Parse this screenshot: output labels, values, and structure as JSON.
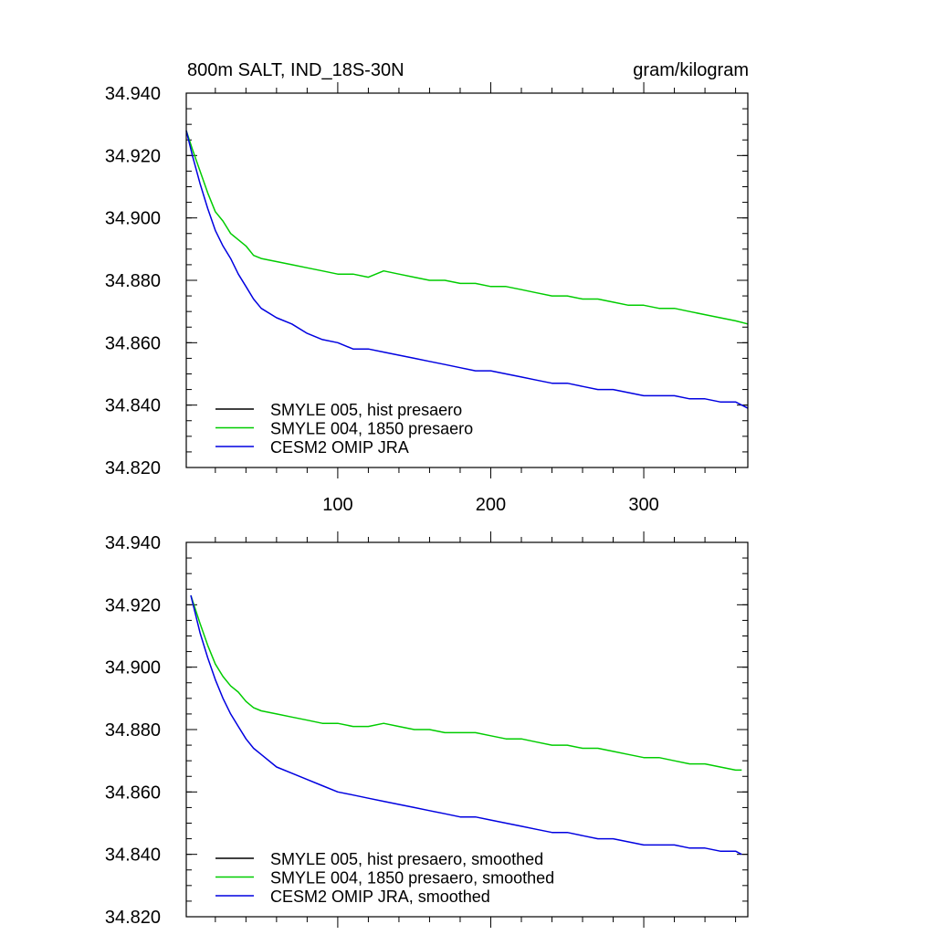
{
  "chart_data": [
    {
      "type": "line",
      "title": "800m SALT, IND_18S-30N",
      "units": "gram/kilogram",
      "xlim": [
        1,
        368
      ],
      "ylim": [
        34.82,
        34.94
      ],
      "x_ticks": [
        100,
        200,
        300
      ],
      "x_tick_labels": [
        "100",
        "200",
        "300"
      ],
      "y_ticks": [
        34.82,
        34.84,
        34.86,
        34.88,
        34.9,
        34.92,
        34.94
      ],
      "y_tick_labels": [
        "34.820",
        "34.840",
        "34.860",
        "34.880",
        "34.900",
        "34.920",
        "34.940"
      ],
      "legend_position": "bottom-left",
      "series": [
        {
          "name": "SMYLE 005, hist presaero",
          "color": "#000000",
          "x": [],
          "values": []
        },
        {
          "name": "SMYLE 004, 1850 presaero",
          "color": "#00cc00",
          "x": [
            1,
            5,
            10,
            15,
            20,
            25,
            30,
            35,
            40,
            45,
            50,
            60,
            70,
            80,
            90,
            100,
            110,
            120,
            130,
            140,
            150,
            160,
            170,
            180,
            190,
            200,
            210,
            220,
            230,
            240,
            250,
            260,
            270,
            280,
            290,
            300,
            310,
            320,
            330,
            340,
            350,
            360,
            368
          ],
          "values": [
            34.928,
            34.922,
            34.915,
            34.908,
            34.902,
            34.899,
            34.895,
            34.893,
            34.891,
            34.888,
            34.887,
            34.886,
            34.885,
            34.884,
            34.883,
            34.882,
            34.882,
            34.881,
            34.883,
            34.882,
            34.881,
            34.88,
            34.88,
            34.879,
            34.879,
            34.878,
            34.878,
            34.877,
            34.876,
            34.875,
            34.875,
            34.874,
            34.874,
            34.873,
            34.872,
            34.872,
            34.871,
            34.871,
            34.87,
            34.869,
            34.868,
            34.867,
            34.866
          ]
        },
        {
          "name": "CESM2 OMIP JRA",
          "color": "#0000e0",
          "x": [
            1,
            5,
            10,
            15,
            20,
            25,
            30,
            35,
            40,
            45,
            50,
            60,
            70,
            80,
            90,
            100,
            110,
            120,
            130,
            140,
            150,
            160,
            170,
            180,
            190,
            200,
            210,
            220,
            230,
            240,
            250,
            260,
            270,
            280,
            290,
            300,
            310,
            320,
            330,
            340,
            350,
            360,
            368
          ],
          "values": [
            34.928,
            34.92,
            34.911,
            34.903,
            34.896,
            34.891,
            34.887,
            34.882,
            34.878,
            34.874,
            34.871,
            34.868,
            34.866,
            34.863,
            34.861,
            34.86,
            34.858,
            34.858,
            34.857,
            34.856,
            34.855,
            34.854,
            34.853,
            34.852,
            34.851,
            34.851,
            34.85,
            34.849,
            34.848,
            34.847,
            34.847,
            34.846,
            34.845,
            34.845,
            34.844,
            34.843,
            34.843,
            34.843,
            34.842,
            34.842,
            34.841,
            34.841,
            34.839
          ]
        }
      ]
    },
    {
      "type": "line",
      "title": "",
      "xlim": [
        1,
        368
      ],
      "ylim": [
        34.82,
        34.94
      ],
      "x_ticks": [
        100,
        200,
        300
      ],
      "x_tick_labels": [],
      "y_ticks": [
        34.82,
        34.84,
        34.86,
        34.88,
        34.9,
        34.92,
        34.94
      ],
      "y_tick_labels": [
        "34.820",
        "34.840",
        "34.860",
        "34.880",
        "34.900",
        "34.920",
        "34.940"
      ],
      "legend_position": "bottom-left",
      "series": [
        {
          "name": "SMYLE 005, hist presaero, smoothed",
          "color": "#000000",
          "x": [],
          "values": []
        },
        {
          "name": "SMYLE 004, 1850 presaero, smoothed",
          "color": "#00cc00",
          "x": [
            4,
            10,
            15,
            20,
            25,
            30,
            35,
            40,
            45,
            50,
            60,
            70,
            80,
            90,
            100,
            110,
            120,
            130,
            140,
            150,
            160,
            170,
            180,
            190,
            200,
            210,
            220,
            230,
            240,
            250,
            260,
            270,
            280,
            290,
            300,
            310,
            320,
            330,
            340,
            350,
            360,
            364
          ],
          "values": [
            34.923,
            34.914,
            34.907,
            34.901,
            34.897,
            34.894,
            34.892,
            34.889,
            34.887,
            34.886,
            34.885,
            34.884,
            34.883,
            34.882,
            34.882,
            34.881,
            34.881,
            34.882,
            34.881,
            34.88,
            34.88,
            34.879,
            34.879,
            34.879,
            34.878,
            34.877,
            34.877,
            34.876,
            34.875,
            34.875,
            34.874,
            34.874,
            34.873,
            34.872,
            34.871,
            34.871,
            34.87,
            34.869,
            34.869,
            34.868,
            34.867,
            34.867
          ]
        },
        {
          "name": "CESM2 OMIP JRA, smoothed",
          "color": "#0000e0",
          "x": [
            4,
            10,
            15,
            20,
            25,
            30,
            35,
            40,
            45,
            50,
            60,
            70,
            80,
            90,
            100,
            110,
            120,
            130,
            140,
            150,
            160,
            170,
            180,
            190,
            200,
            210,
            220,
            230,
            240,
            250,
            260,
            270,
            280,
            290,
            300,
            310,
            320,
            330,
            340,
            350,
            360,
            364
          ],
          "values": [
            34.923,
            34.911,
            34.903,
            34.896,
            34.89,
            34.885,
            34.881,
            34.877,
            34.874,
            34.872,
            34.868,
            34.866,
            34.864,
            34.862,
            34.86,
            34.859,
            34.858,
            34.857,
            34.856,
            34.855,
            34.854,
            34.853,
            34.852,
            34.852,
            34.851,
            34.85,
            34.849,
            34.848,
            34.847,
            34.847,
            34.846,
            34.845,
            34.845,
            34.844,
            34.843,
            34.843,
            34.843,
            34.842,
            34.842,
            34.841,
            34.841,
            34.84
          ]
        }
      ]
    }
  ]
}
